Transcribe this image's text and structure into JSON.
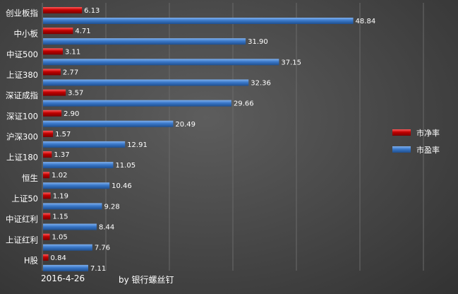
{
  "chart_data": {
    "type": "bar",
    "orientation": "horizontal",
    "categories": [
      "创业板指",
      "中小板",
      "中证500",
      "上证380",
      "深证成指",
      "深证100",
      "沪深300",
      "上证180",
      "恒生",
      "上证50",
      "中证红利",
      "上证红利",
      "H股"
    ],
    "series": [
      {
        "name": "市净率",
        "color": "#c00000",
        "values": [
          6.13,
          4.71,
          3.11,
          2.77,
          3.57,
          2.9,
          1.57,
          1.37,
          1.02,
          1.19,
          1.15,
          1.05,
          0.84
        ]
      },
      {
        "name": "市盈率",
        "color": "#3a78c9",
        "values": [
          48.84,
          31.9,
          37.15,
          32.36,
          29.66,
          20.49,
          12.91,
          11.05,
          10.46,
          9.28,
          8.44,
          7.76,
          7.11
        ]
      }
    ],
    "xlim": [
      0,
      60
    ],
    "grid": true,
    "legend_position": "right"
  },
  "footer": {
    "date": "2016-4-26",
    "credit": "by 银行螺丝钉"
  }
}
